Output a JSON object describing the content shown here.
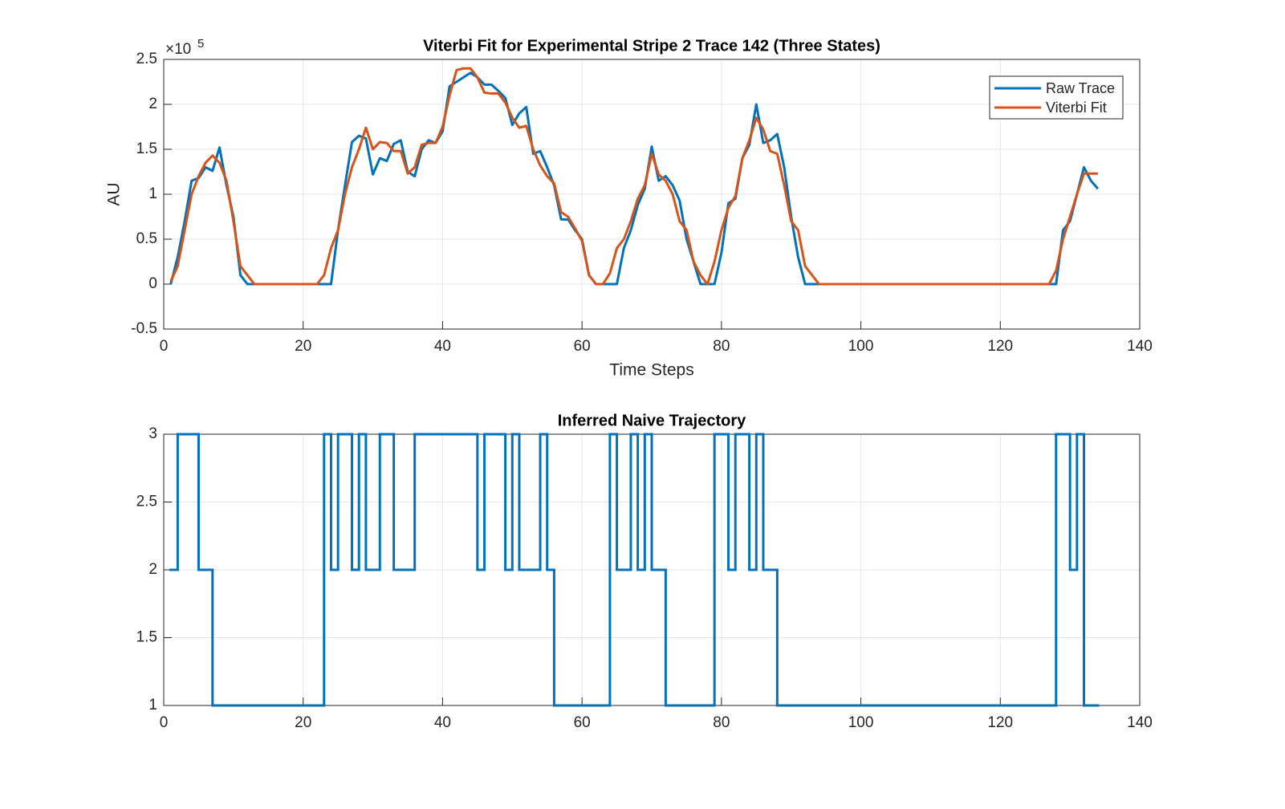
{
  "chart_data": [
    {
      "type": "line",
      "title": "Viterbi Fit for Experimental Stripe 2 Trace 142 (Three States)",
      "xlabel": "Time Steps",
      "ylabel": "AU",
      "y_multiplier": {
        "base": "×10",
        "exponent": "5"
      },
      "x": [
        1,
        2,
        3,
        4,
        5,
        6,
        7,
        8,
        9,
        10,
        11,
        12,
        13,
        14,
        15,
        16,
        17,
        18,
        19,
        20,
        21,
        22,
        23,
        24,
        25,
        26,
        27,
        28,
        29,
        30,
        31,
        32,
        33,
        34,
        35,
        36,
        37,
        38,
        39,
        40,
        41,
        42,
        43,
        44,
        45,
        46,
        47,
        48,
        49,
        50,
        51,
        52,
        53,
        54,
        55,
        56,
        57,
        58,
        59,
        60,
        61,
        62,
        63,
        64,
        65,
        66,
        67,
        68,
        69,
        70,
        71,
        72,
        73,
        74,
        75,
        76,
        77,
        78,
        79,
        80,
        81,
        82,
        83,
        84,
        85,
        86,
        87,
        88,
        89,
        90,
        91,
        92,
        93,
        94,
        95,
        96,
        97,
        98,
        99,
        100,
        101,
        102,
        103,
        104,
        105,
        106,
        107,
        108,
        109,
        110,
        111,
        112,
        113,
        114,
        115,
        116,
        117,
        118,
        119,
        120,
        121,
        122,
        123,
        124,
        125,
        126,
        127,
        128,
        129,
        130,
        131,
        132,
        133,
        134
      ],
      "series": [
        {
          "name": "Raw Trace",
          "color": "#0072BD",
          "values": [
            0,
            0.3,
            0.7,
            1.15,
            1.18,
            1.3,
            1.26,
            1.52,
            1.1,
            0.75,
            0.1,
            0,
            0,
            0,
            0,
            0,
            0,
            0,
            0,
            0,
            0,
            0,
            0,
            0,
            0.6,
            1.1,
            1.58,
            1.65,
            1.62,
            1.22,
            1.4,
            1.37,
            1.56,
            1.6,
            1.25,
            1.2,
            1.5,
            1.6,
            1.57,
            1.7,
            2.2,
            2.25,
            2.3,
            2.35,
            2.3,
            2.22,
            2.22,
            2.15,
            2.07,
            1.77,
            1.9,
            1.97,
            1.45,
            1.48,
            1.3,
            1.1,
            0.72,
            0.72,
            0.6,
            0.5,
            0.1,
            0,
            0,
            0,
            0,
            0.4,
            0.6,
            0.88,
            1.06,
            1.53,
            1.15,
            1.2,
            1.1,
            0.93,
            0.5,
            0.25,
            0,
            0,
            0,
            0.35,
            0.9,
            0.95,
            1.4,
            1.55,
            2.0,
            1.57,
            1.6,
            1.67,
            1.3,
            0.75,
            0.3,
            0,
            0,
            0,
            0,
            0,
            0,
            0,
            0,
            0,
            0,
            0,
            0,
            0,
            0,
            0,
            0,
            0,
            0,
            0,
            0,
            0,
            0,
            0,
            0,
            0,
            0,
            0,
            0,
            0,
            0,
            0,
            0,
            0,
            0,
            0,
            0,
            0,
            0.6,
            0.7,
            1.0,
            1.3,
            1.15,
            1.06
          ]
        },
        {
          "name": "Viterbi Fit",
          "color": "#D95319",
          "values": [
            0.03,
            0.2,
            0.6,
            1.0,
            1.2,
            1.35,
            1.43,
            1.35,
            1.15,
            0.7,
            0.2,
            0.1,
            0,
            0,
            0,
            0,
            0,
            0,
            0,
            0,
            0,
            0,
            0.1,
            0.4,
            0.6,
            1.0,
            1.3,
            1.5,
            1.74,
            1.5,
            1.58,
            1.57,
            1.48,
            1.48,
            1.23,
            1.3,
            1.55,
            1.57,
            1.57,
            1.75,
            2.1,
            2.38,
            2.4,
            2.4,
            2.3,
            2.13,
            2.12,
            2.12,
            2.02,
            1.85,
            1.74,
            1.76,
            1.5,
            1.32,
            1.2,
            1.12,
            0.8,
            0.75,
            0.62,
            0.48,
            0.1,
            0,
            0,
            0.12,
            0.4,
            0.5,
            0.7,
            0.95,
            1.1,
            1.45,
            1.22,
            1.15,
            1.0,
            0.7,
            0.6,
            0.25,
            0.1,
            0,
            0.25,
            0.6,
            0.85,
            0.98,
            1.4,
            1.6,
            1.85,
            1.72,
            1.48,
            1.45,
            1.1,
            0.7,
            0.6,
            0.2,
            0.1,
            0,
            0,
            0,
            0,
            0,
            0,
            0,
            0,
            0,
            0,
            0,
            0,
            0,
            0,
            0,
            0,
            0,
            0,
            0,
            0,
            0,
            0,
            0,
            0,
            0,
            0,
            0,
            0,
            0,
            0,
            0,
            0,
            0,
            0,
            0.15,
            0.5,
            0.75,
            1.0,
            1.23,
            1.23,
            1.23
          ]
        }
      ],
      "xlim": [
        0,
        140
      ],
      "xticks": [
        0,
        20,
        40,
        60,
        80,
        100,
        120,
        140
      ],
      "ylim": [
        -0.5,
        2.5
      ],
      "yticks": [
        -0.5,
        0,
        0.5,
        1,
        1.5,
        2,
        2.5
      ],
      "grid": true,
      "legend": "upper right"
    },
    {
      "type": "stairs",
      "title": "Inferred Naive Trajectory",
      "x": [
        1,
        2,
        3,
        4,
        5,
        6,
        7,
        8,
        9,
        10,
        11,
        12,
        13,
        14,
        15,
        16,
        17,
        18,
        19,
        20,
        21,
        22,
        23,
        24,
        25,
        26,
        27,
        28,
        29,
        30,
        31,
        32,
        33,
        34,
        35,
        36,
        37,
        38,
        39,
        40,
        41,
        42,
        43,
        44,
        45,
        46,
        47,
        48,
        49,
        50,
        51,
        52,
        53,
        54,
        55,
        56,
        57,
        58,
        59,
        60,
        61,
        62,
        63,
        64,
        65,
        66,
        67,
        68,
        69,
        70,
        71,
        72,
        73,
        74,
        75,
        76,
        77,
        78,
        79,
        80,
        81,
        82,
        83,
        84,
        85,
        86,
        87,
        88,
        89,
        90,
        91,
        92,
        93,
        94,
        95,
        96,
        97,
        98,
        99,
        100,
        101,
        102,
        103,
        104,
        105,
        106,
        107,
        108,
        109,
        110,
        111,
        112,
        113,
        114,
        115,
        116,
        117,
        118,
        119,
        120,
        121,
        122,
        123,
        124,
        125,
        126,
        127,
        128,
        129,
        130,
        131,
        132,
        133,
        134
      ],
      "color": "#0072BD",
      "values": [
        2,
        3,
        3,
        3,
        2,
        2,
        1,
        1,
        1,
        1,
        1,
        1,
        1,
        1,
        1,
        1,
        1,
        1,
        1,
        1,
        1,
        1,
        3,
        2,
        3,
        3,
        2,
        3,
        2,
        2,
        3,
        3,
        2,
        2,
        2,
        3,
        3,
        3,
        3,
        3,
        3,
        3,
        3,
        3,
        2,
        3,
        3,
        3,
        2,
        3,
        2,
        2,
        2,
        3,
        2,
        1,
        1,
        1,
        1,
        1,
        1,
        1,
        1,
        3,
        2,
        2,
        3,
        2,
        3,
        2,
        2,
        1,
        1,
        1,
        1,
        1,
        1,
        1,
        3,
        3,
        2,
        3,
        3,
        2,
        3,
        2,
        2,
        1,
        1,
        1,
        1,
        1,
        1,
        1,
        1,
        1,
        1,
        1,
        1,
        1,
        1,
        1,
        1,
        1,
        1,
        1,
        1,
        1,
        1,
        1,
        1,
        1,
        1,
        1,
        1,
        1,
        1,
        1,
        1,
        1,
        1,
        1,
        1,
        1,
        1,
        1,
        1,
        3,
        3,
        2,
        3,
        1,
        1,
        1
      ],
      "xlim": [
        0,
        140
      ],
      "xticks": [
        0,
        20,
        40,
        60,
        80,
        100,
        120,
        140
      ],
      "ylim": [
        1,
        3
      ],
      "yticks": [
        1,
        1.5,
        2,
        2.5,
        3
      ],
      "grid": true
    }
  ]
}
